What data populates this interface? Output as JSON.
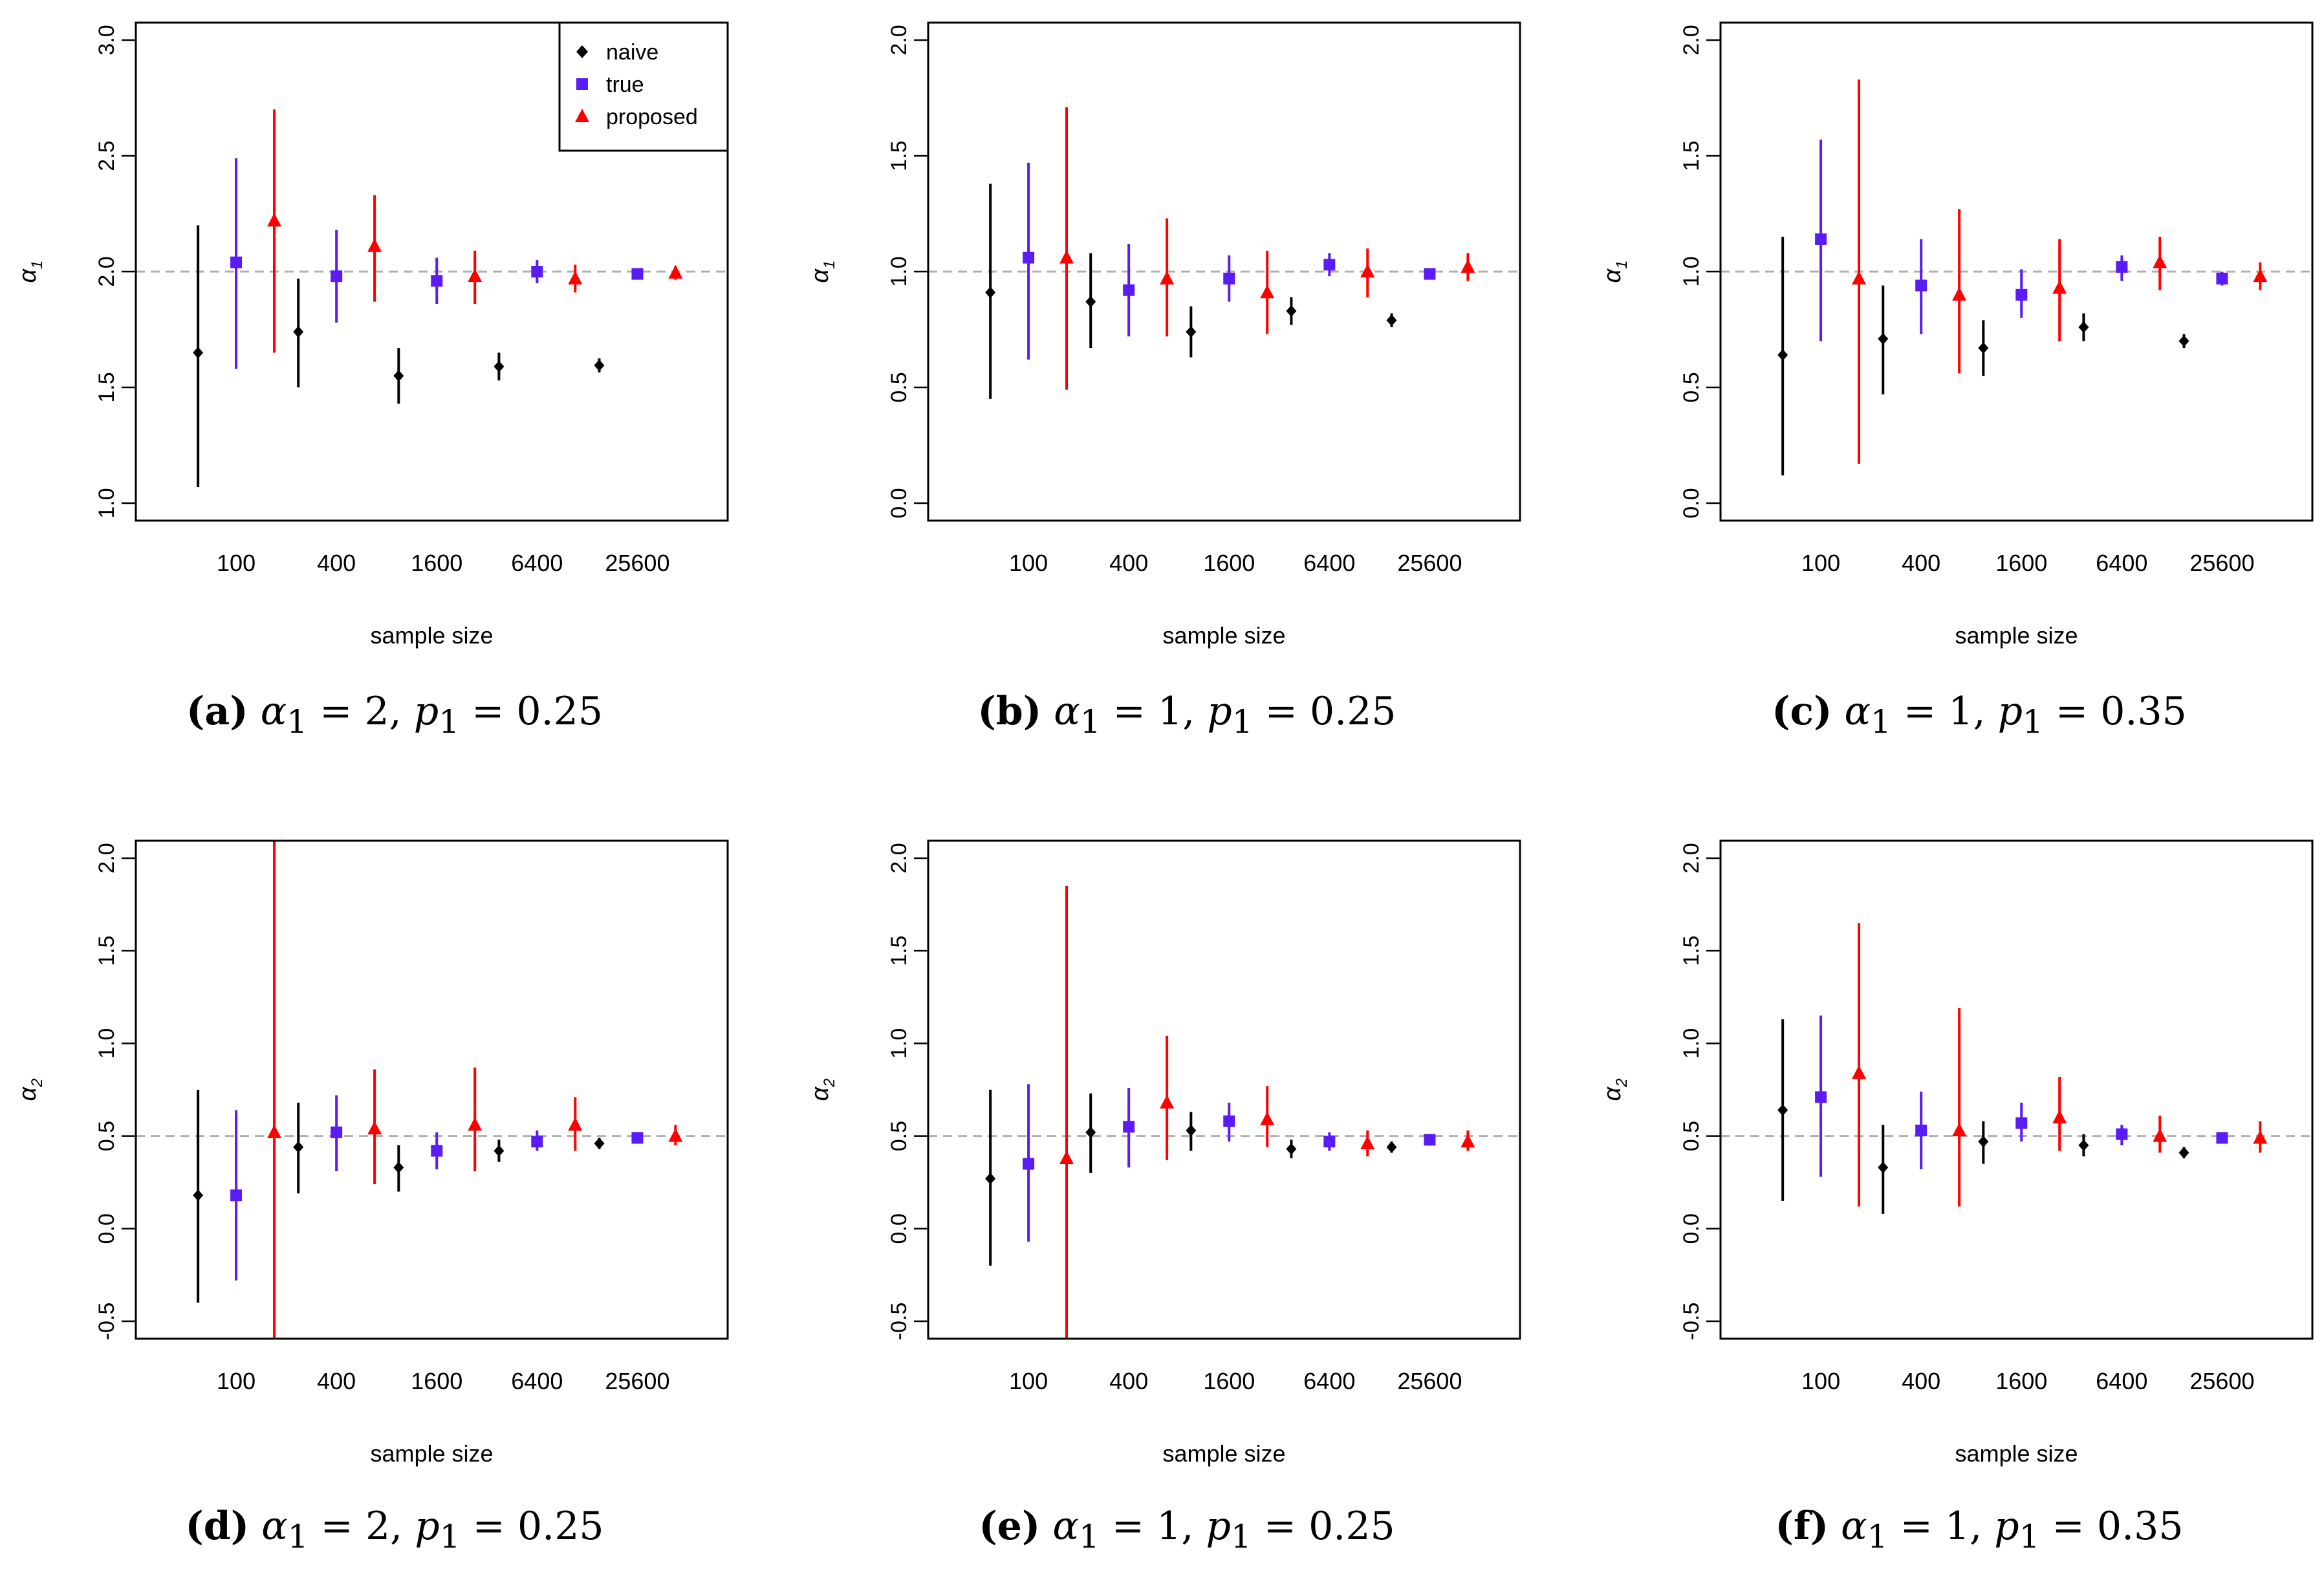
{
  "figure": {
    "legend_labels": [
      "naive",
      "true",
      "proposed"
    ],
    "series_colors": {
      "naive": "#000000",
      "true": "#5a1bf5",
      "proposed": "#ff0000"
    },
    "reference_color": "#b0b0b0"
  },
  "captions": [
    {
      "label": "(a)",
      "param": "α",
      "sub": "1",
      "eq1": " = 2, ",
      "p": "p",
      "psub": "1",
      "eq2": " = 0.25"
    },
    {
      "label": "(b)",
      "param": "α",
      "sub": "1",
      "eq1": " = 1, ",
      "p": "p",
      "psub": "1",
      "eq2": " = 0.25"
    },
    {
      "label": "(c)",
      "param": "α",
      "sub": "1",
      "eq1": " = 1, ",
      "p": "p",
      "psub": "1",
      "eq2": " = 0.35"
    },
    {
      "label": "(d)",
      "param": "α",
      "sub": "1",
      "eq1": " = 2, ",
      "p": "p",
      "psub": "1",
      "eq2": " = 0.25"
    },
    {
      "label": "(e)",
      "param": "α",
      "sub": "1",
      "eq1": " = 1, ",
      "p": "p",
      "psub": "1",
      "eq2": " = 0.25"
    },
    {
      "label": "(f)",
      "param": "α",
      "sub": "1",
      "eq1": " = 1, ",
      "p": "p",
      "psub": "1",
      "eq2": " = 0.35"
    }
  ],
  "chart_data": [
    {
      "type": "scatter",
      "panel": "a",
      "title": "",
      "xlabel": "sample size",
      "ylabel": "α",
      "ylabel_sub": "1",
      "categories": [
        "100",
        "400",
        "1600",
        "6400",
        "25600"
      ],
      "ylim": [
        1.0,
        3.0
      ],
      "yticks": [
        "1.0",
        "1.5",
        "2.0",
        "2.5",
        "3.0"
      ],
      "reference_line": 2.0,
      "legend": {
        "position": "top-right",
        "entries": [
          "naive",
          "true",
          "proposed"
        ]
      },
      "series": [
        {
          "name": "naive",
          "marker": "diamond",
          "points": [
            {
              "mean": 1.65,
              "low": 1.07,
              "high": 2.2
            },
            {
              "mean": 1.74,
              "low": 1.5,
              "high": 1.97
            },
            {
              "mean": 1.55,
              "low": 1.43,
              "high": 1.67
            },
            {
              "mean": 1.59,
              "low": 1.53,
              "high": 1.65
            },
            {
              "mean": 1.595,
              "low": 1.565,
              "high": 1.625
            }
          ]
        },
        {
          "name": "true",
          "marker": "square",
          "points": [
            {
              "mean": 2.04,
              "low": 1.58,
              "high": 2.49
            },
            {
              "mean": 1.98,
              "low": 1.78,
              "high": 2.18
            },
            {
              "mean": 1.96,
              "low": 1.86,
              "high": 2.06
            },
            {
              "mean": 2.0,
              "low": 1.95,
              "high": 2.05
            },
            {
              "mean": 1.99,
              "low": 1.97,
              "high": 2.01
            }
          ]
        },
        {
          "name": "proposed",
          "marker": "triangle",
          "points": [
            {
              "mean": 2.22,
              "low": 1.65,
              "high": 2.7
            },
            {
              "mean": 2.11,
              "low": 1.87,
              "high": 2.33
            },
            {
              "mean": 1.98,
              "low": 1.86,
              "high": 2.09
            },
            {
              "mean": 1.97,
              "low": 1.91,
              "high": 2.03
            },
            {
              "mean": 1.995,
              "low": 1.965,
              "high": 2.025
            }
          ]
        }
      ]
    },
    {
      "type": "scatter",
      "panel": "b",
      "title": "",
      "xlabel": "sample size",
      "ylabel": "α",
      "ylabel_sub": "1",
      "categories": [
        "100",
        "400",
        "1600",
        "6400",
        "25600"
      ],
      "ylim": [
        0.0,
        2.0
      ],
      "yticks": [
        "0.0",
        "0.5",
        "1.0",
        "1.5",
        "2.0"
      ],
      "reference_line": 1.0,
      "series": [
        {
          "name": "naive",
          "marker": "diamond",
          "points": [
            {
              "mean": 0.91,
              "low": 0.45,
              "high": 1.38
            },
            {
              "mean": 0.87,
              "low": 0.67,
              "high": 1.08
            },
            {
              "mean": 0.74,
              "low": 0.63,
              "high": 0.85
            },
            {
              "mean": 0.83,
              "low": 0.77,
              "high": 0.89
            },
            {
              "mean": 0.79,
              "low": 0.76,
              "high": 0.82
            }
          ]
        },
        {
          "name": "true",
          "marker": "square",
          "points": [
            {
              "mean": 1.06,
              "low": 0.62,
              "high": 1.47
            },
            {
              "mean": 0.92,
              "low": 0.72,
              "high": 1.12
            },
            {
              "mean": 0.97,
              "low": 0.87,
              "high": 1.07
            },
            {
              "mean": 1.03,
              "low": 0.98,
              "high": 1.08
            },
            {
              "mean": 0.99,
              "low": 0.97,
              "high": 1.01
            }
          ]
        },
        {
          "name": "proposed",
          "marker": "triangle",
          "points": [
            {
              "mean": 1.06,
              "low": 0.49,
              "high": 1.71
            },
            {
              "mean": 0.97,
              "low": 0.72,
              "high": 1.23
            },
            {
              "mean": 0.91,
              "low": 0.73,
              "high": 1.09
            },
            {
              "mean": 1.0,
              "low": 0.89,
              "high": 1.1
            },
            {
              "mean": 1.02,
              "low": 0.96,
              "high": 1.08
            }
          ]
        }
      ]
    },
    {
      "type": "scatter",
      "panel": "c",
      "title": "",
      "xlabel": "sample size",
      "ylabel": "α",
      "ylabel_sub": "1",
      "categories": [
        "100",
        "400",
        "1600",
        "6400",
        "25600"
      ],
      "ylim": [
        0.0,
        2.0
      ],
      "yticks": [
        "0.0",
        "0.5",
        "1.0",
        "1.5",
        "2.0"
      ],
      "reference_line": 1.0,
      "series": [
        {
          "name": "naive",
          "marker": "diamond",
          "points": [
            {
              "mean": 0.64,
              "low": 0.12,
              "high": 1.15
            },
            {
              "mean": 0.71,
              "low": 0.47,
              "high": 0.94
            },
            {
              "mean": 0.67,
              "low": 0.55,
              "high": 0.79
            },
            {
              "mean": 0.76,
              "low": 0.7,
              "high": 0.82
            },
            {
              "mean": 0.7,
              "low": 0.67,
              "high": 0.73
            }
          ]
        },
        {
          "name": "true",
          "marker": "square",
          "points": [
            {
              "mean": 1.14,
              "low": 0.7,
              "high": 1.57
            },
            {
              "mean": 0.94,
              "low": 0.73,
              "high": 1.14
            },
            {
              "mean": 0.9,
              "low": 0.8,
              "high": 1.01
            },
            {
              "mean": 1.02,
              "low": 0.96,
              "high": 1.07
            },
            {
              "mean": 0.97,
              "low": 0.94,
              "high": 1.0
            }
          ]
        },
        {
          "name": "proposed",
          "marker": "triangle",
          "points": [
            {
              "mean": 0.97,
              "low": 0.17,
              "high": 1.83
            },
            {
              "mean": 0.9,
              "low": 0.56,
              "high": 1.27
            },
            {
              "mean": 0.93,
              "low": 0.7,
              "high": 1.14
            },
            {
              "mean": 1.04,
              "low": 0.92,
              "high": 1.15
            },
            {
              "mean": 0.98,
              "low": 0.92,
              "high": 1.04
            }
          ]
        }
      ]
    },
    {
      "type": "scatter",
      "panel": "d",
      "title": "",
      "xlabel": "sample size",
      "ylabel": "α",
      "ylabel_sub": "2",
      "categories": [
        "100",
        "400",
        "1600",
        "6400",
        "25600"
      ],
      "ylim": [
        -0.5,
        2.0
      ],
      "yticks": [
        "-0.5",
        "0.0",
        "0.5",
        "1.0",
        "1.5",
        "2.0"
      ],
      "reference_line": 0.5,
      "series": [
        {
          "name": "naive",
          "marker": "diamond",
          "points": [
            {
              "mean": 0.18,
              "low": -0.4,
              "high": 0.75
            },
            {
              "mean": 0.44,
              "low": 0.19,
              "high": 0.68
            },
            {
              "mean": 0.33,
              "low": 0.2,
              "high": 0.45
            },
            {
              "mean": 0.42,
              "low": 0.36,
              "high": 0.48
            },
            {
              "mean": 0.46,
              "low": 0.43,
              "high": 0.49
            }
          ]
        },
        {
          "name": "true",
          "marker": "square",
          "points": [
            {
              "mean": 0.18,
              "low": -0.28,
              "high": 0.64
            },
            {
              "mean": 0.52,
              "low": 0.31,
              "high": 0.72
            },
            {
              "mean": 0.42,
              "low": 0.32,
              "high": 0.52
            },
            {
              "mean": 0.47,
              "low": 0.42,
              "high": 0.53
            },
            {
              "mean": 0.49,
              "low": 0.46,
              "high": 0.51
            }
          ]
        },
        {
          "name": "proposed",
          "marker": "triangle",
          "points": [
            {
              "mean": 0.52,
              "low": -0.6,
              "high": 2.1
            },
            {
              "mean": 0.54,
              "low": 0.24,
              "high": 0.86
            },
            {
              "mean": 0.56,
              "low": 0.31,
              "high": 0.87
            },
            {
              "mean": 0.56,
              "low": 0.42,
              "high": 0.71
            },
            {
              "mean": 0.5,
              "low": 0.45,
              "high": 0.56
            }
          ]
        }
      ]
    },
    {
      "type": "scatter",
      "panel": "e",
      "title": "",
      "xlabel": "sample size",
      "ylabel": "α",
      "ylabel_sub": "2",
      "categories": [
        "100",
        "400",
        "1600",
        "6400",
        "25600"
      ],
      "ylim": [
        -0.5,
        2.0
      ],
      "yticks": [
        "-0.5",
        "0.0",
        "0.5",
        "1.0",
        "1.5",
        "2.0"
      ],
      "reference_line": 0.5,
      "series": [
        {
          "name": "naive",
          "marker": "diamond",
          "points": [
            {
              "mean": 0.27,
              "low": -0.2,
              "high": 0.75
            },
            {
              "mean": 0.52,
              "low": 0.3,
              "high": 0.73
            },
            {
              "mean": 0.53,
              "low": 0.42,
              "high": 0.63
            },
            {
              "mean": 0.43,
              "low": 0.38,
              "high": 0.48
            },
            {
              "mean": 0.44,
              "low": 0.41,
              "high": 0.47
            }
          ]
        },
        {
          "name": "true",
          "marker": "square",
          "points": [
            {
              "mean": 0.35,
              "low": -0.07,
              "high": 0.78
            },
            {
              "mean": 0.55,
              "low": 0.33,
              "high": 0.76
            },
            {
              "mean": 0.58,
              "low": 0.47,
              "high": 0.68
            },
            {
              "mean": 0.47,
              "low": 0.42,
              "high": 0.52
            },
            {
              "mean": 0.48,
              "low": 0.45,
              "high": 0.51
            }
          ]
        },
        {
          "name": "proposed",
          "marker": "triangle",
          "points": [
            {
              "mean": 0.38,
              "low": -0.6,
              "high": 1.85
            },
            {
              "mean": 0.68,
              "low": 0.37,
              "high": 1.04
            },
            {
              "mean": 0.59,
              "low": 0.44,
              "high": 0.77
            },
            {
              "mean": 0.46,
              "low": 0.39,
              "high": 0.53
            },
            {
              "mean": 0.47,
              "low": 0.42,
              "high": 0.53
            }
          ]
        }
      ]
    },
    {
      "type": "scatter",
      "panel": "f",
      "title": "",
      "xlabel": "sample size",
      "ylabel": "α",
      "ylabel_sub": "2",
      "categories": [
        "100",
        "400",
        "1600",
        "6400",
        "25600"
      ],
      "ylim": [
        -0.5,
        2.0
      ],
      "yticks": [
        "-0.5",
        "0.0",
        "0.5",
        "1.0",
        "1.5",
        "2.0"
      ],
      "reference_line": 0.5,
      "series": [
        {
          "name": "naive",
          "marker": "diamond",
          "points": [
            {
              "mean": 0.64,
              "low": 0.15,
              "high": 1.13
            },
            {
              "mean": 0.33,
              "low": 0.08,
              "high": 0.56
            },
            {
              "mean": 0.47,
              "low": 0.35,
              "high": 0.58
            },
            {
              "mean": 0.45,
              "low": 0.39,
              "high": 0.51
            },
            {
              "mean": 0.41,
              "low": 0.38,
              "high": 0.44
            }
          ]
        },
        {
          "name": "true",
          "marker": "square",
          "points": [
            {
              "mean": 0.71,
              "low": 0.28,
              "high": 1.15
            },
            {
              "mean": 0.53,
              "low": 0.32,
              "high": 0.74
            },
            {
              "mean": 0.57,
              "low": 0.47,
              "high": 0.68
            },
            {
              "mean": 0.51,
              "low": 0.45,
              "high": 0.56
            },
            {
              "mean": 0.49,
              "low": 0.46,
              "high": 0.52
            }
          ]
        },
        {
          "name": "proposed",
          "marker": "triangle",
          "points": [
            {
              "mean": 0.84,
              "low": 0.12,
              "high": 1.65
            },
            {
              "mean": 0.53,
              "low": 0.12,
              "high": 1.19
            },
            {
              "mean": 0.6,
              "low": 0.42,
              "high": 0.82
            },
            {
              "mean": 0.5,
              "low": 0.41,
              "high": 0.61
            },
            {
              "mean": 0.49,
              "low": 0.41,
              "high": 0.58
            }
          ]
        }
      ]
    }
  ]
}
